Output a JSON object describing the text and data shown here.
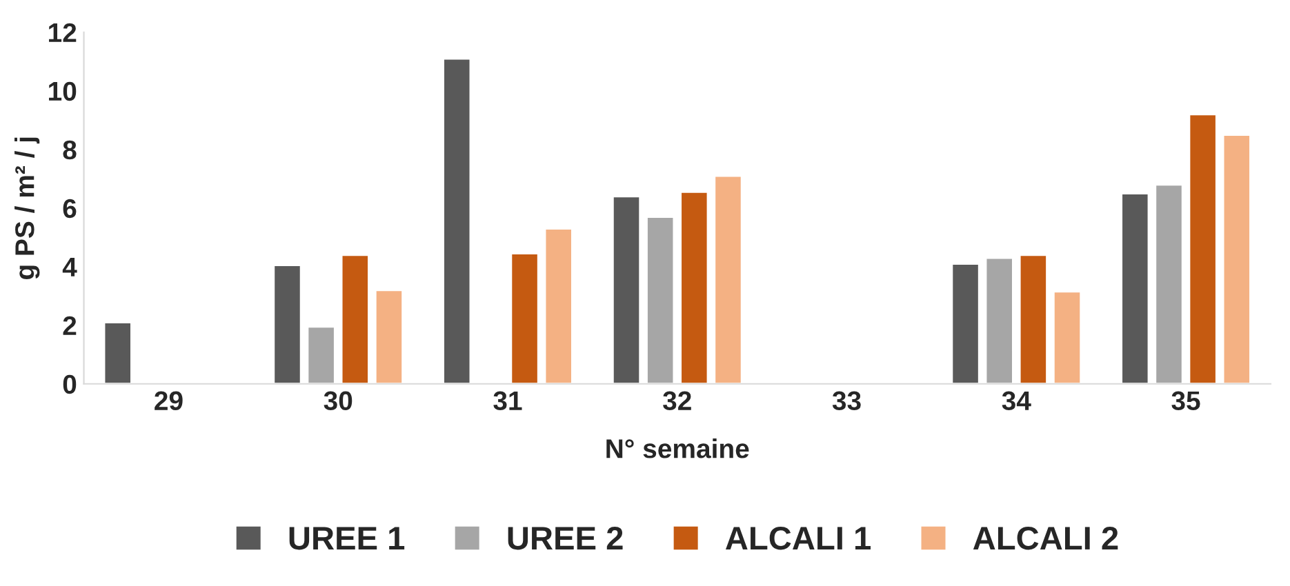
{
  "chart_data": {
    "type": "bar",
    "xlabel": "N° semaine",
    "ylabel": "g PS / m² / j",
    "categories": [
      "29",
      "30",
      "31",
      "32",
      "33",
      "34",
      "35"
    ],
    "series": [
      {
        "name": "UREE 1",
        "color": "#595959",
        "values": [
          2.1,
          4.05,
          11.1,
          6.4,
          null,
          4.1,
          6.5
        ]
      },
      {
        "name": "UREE 2",
        "color": "#a6a6a6",
        "values": [
          null,
          1.95,
          null,
          5.7,
          null,
          4.3,
          6.8
        ]
      },
      {
        "name": "ALCALI 1",
        "color": "#c55a11",
        "values": [
          null,
          4.4,
          4.45,
          6.55,
          null,
          4.4,
          9.2
        ]
      },
      {
        "name": "ALCALI 2",
        "color": "#f4b183",
        "values": [
          null,
          3.2,
          5.3,
          7.1,
          null,
          3.15,
          8.5
        ]
      }
    ],
    "ylim": [
      0,
      12
    ],
    "yticks": [
      0,
      2,
      4,
      6,
      8,
      10,
      12
    ],
    "grid": false,
    "legend": "bottom"
  }
}
